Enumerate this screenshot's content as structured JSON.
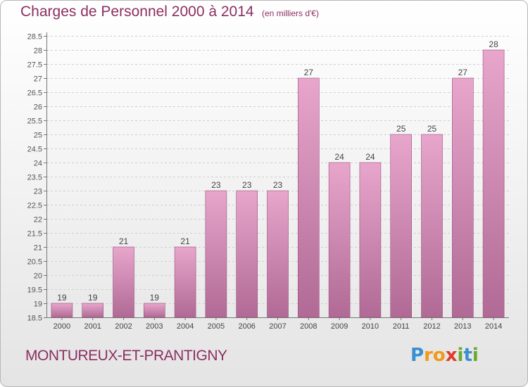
{
  "header": {
    "title": "Charges de Personnel 2000 à 2014",
    "subtitle": "(en milliers d'€)"
  },
  "footer": {
    "commune": "MONTUREUX-ET-PRANTIGNY",
    "logo_text": "Proxiti",
    "logo_letters": [
      {
        "ch": "P",
        "color": "#3a8fd0"
      },
      {
        "ch": "r",
        "color": "#f09a1a"
      },
      {
        "ch": "o",
        "color": "#f09a1a"
      },
      {
        "ch": "x",
        "color": "#e23a2b"
      },
      {
        "ch": "i",
        "color": "#6aaa2a"
      },
      {
        "ch": "t",
        "color": "#3a8fd0"
      },
      {
        "ch": "i",
        "color": "#6aaa2a"
      }
    ]
  },
  "colors": {
    "bar_top": "#e8a6cc",
    "bar_bottom": "#b06a95",
    "bar_stroke": "#9a4f7e",
    "text": "#8c2f62",
    "grid": "#cfcfcf"
  },
  "chart_data": {
    "type": "bar",
    "categories": [
      "2000",
      "2001",
      "2002",
      "2003",
      "2004",
      "2005",
      "2006",
      "2007",
      "2008",
      "2009",
      "2010",
      "2011",
      "2012",
      "2013",
      "2014"
    ],
    "values": [
      19,
      19,
      21,
      19,
      21,
      23,
      23,
      23,
      27,
      24,
      24,
      25,
      25,
      27,
      28
    ],
    "data_labels": [
      "19",
      "19",
      "21",
      "19",
      "21",
      "23",
      "23",
      "23",
      "27",
      "24",
      "24",
      "25",
      "25",
      "27",
      "28"
    ],
    "ylim": [
      18.5,
      28.5
    ],
    "yticks": [
      18.5,
      19,
      19.5,
      20,
      20.5,
      21,
      21.5,
      22,
      22.5,
      23,
      23.5,
      24,
      24.5,
      25,
      25.5,
      26,
      26.5,
      27,
      27.5,
      28,
      28.5
    ],
    "ytick_labels": [
      "18.5",
      "19",
      "19.5",
      "20",
      "20.5",
      "21",
      "21.5",
      "22",
      "22.5",
      "23",
      "23.5",
      "24",
      "24.5",
      "25",
      "25.5",
      "26",
      "26.5",
      "27",
      "27.5",
      "28",
      "28.5"
    ],
    "grid": true,
    "grid_style": "dashed horizontal",
    "xlabel": "",
    "ylabel": ""
  }
}
